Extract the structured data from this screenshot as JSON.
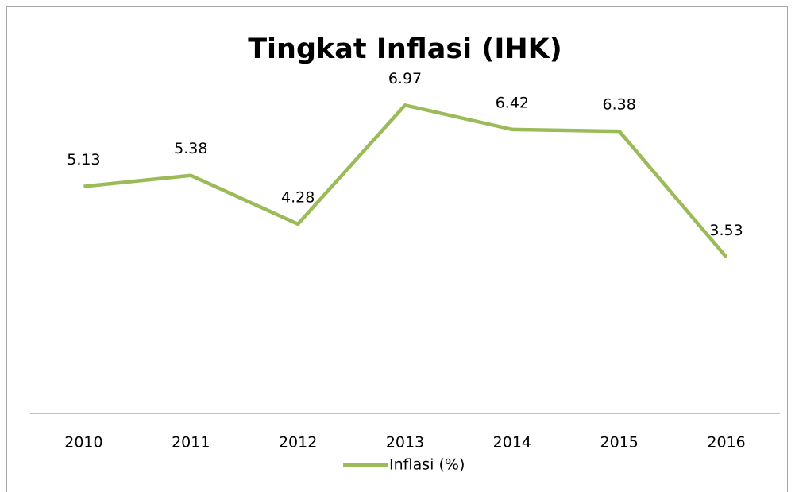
{
  "chart_data": {
    "type": "line",
    "title": "Tingkat Inflasi (IHK)",
    "categories": [
      "2010",
      "2011",
      "2012",
      "2013",
      "2014",
      "2015",
      "2016"
    ],
    "series": [
      {
        "name": "Inflasi (%)",
        "color": "#9bbb59",
        "values": [
          5.13,
          5.38,
          4.28,
          6.97,
          6.42,
          6.38,
          3.53
        ]
      }
    ],
    "ylim": [
      0,
      8
    ],
    "legend": "bottom"
  }
}
